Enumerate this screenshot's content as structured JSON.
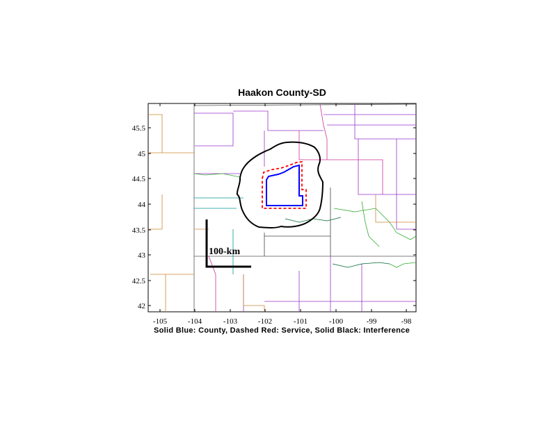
{
  "map": {
    "title": "Haakon County-SD",
    "caption": "Solid Blue: County, Dashed Red: Service, Solid Black: Interference",
    "scale_bar_label": "100-km",
    "x_ticks": [
      "-105",
      "-104",
      "-103",
      "-102",
      "-101",
      "-100",
      "-99",
      "-98"
    ],
    "y_ticks": [
      "42",
      "42.5",
      "43",
      "43.5",
      "44",
      "44.5",
      "45",
      "45.5"
    ],
    "legend": {
      "county_color": "#0000ff",
      "service_color": "#ff0000",
      "interference_color": "#000000"
    }
  }
}
